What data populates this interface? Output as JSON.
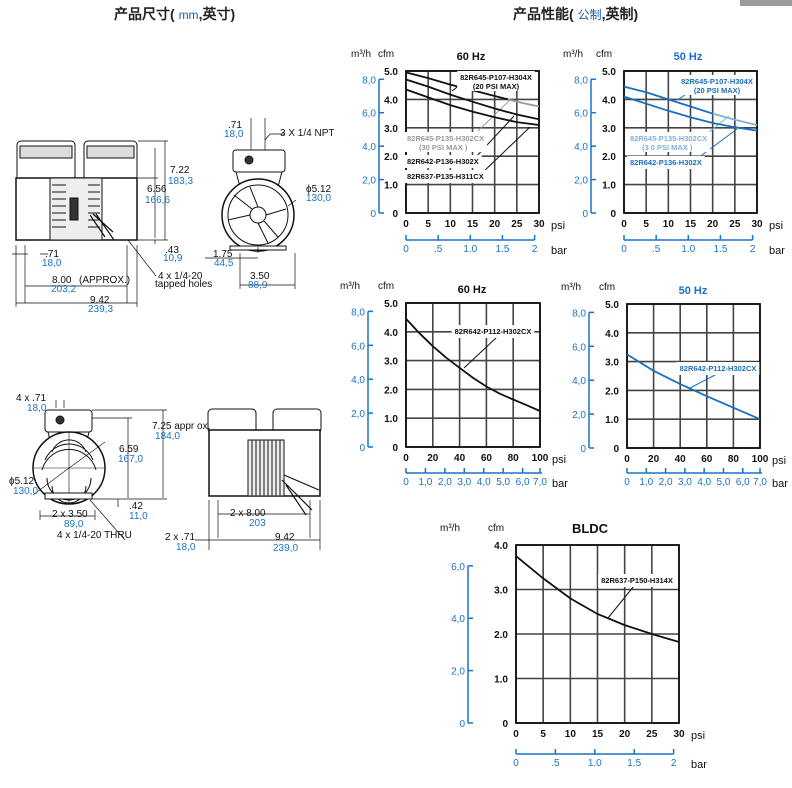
{
  "header": {
    "left_title": "产品尺寸(",
    "left_unit_metric": "mm",
    "left_unit_rest": ",英寸)",
    "right_title": "产品性能(",
    "right_unit_metric": "公制",
    "right_unit_rest": ",英制)"
  },
  "drawings": {
    "front_view": {
      "height_total_in": "7.22",
      "height_total_mm": "183,3",
      "height_body_in": "6.56",
      "height_body_mm": "166,6",
      "foot_offset_in": ".71",
      "foot_offset_mm": "18,0",
      "foot_height_in": ".43",
      "foot_height_mm": "10,9",
      "hole_spacing_in": "8.00",
      "hole_spacing_note": "(APPROX.)",
      "hole_spacing_mm": "203,2",
      "holes_note_1": "4 x 1/4-20",
      "holes_note_2": "tapped holes",
      "length_in": "9.42",
      "length_mm": "239,3"
    },
    "side_view": {
      "port_offset_in": ".71",
      "port_offset_mm": "18,0",
      "ports_note": "3 X 1/4 NPT",
      "diameter_in": "ϕ5.12",
      "diameter_mm": "130,0",
      "half_width_in": "1.75",
      "half_width_mm": "44,5",
      "width_in": "3.50",
      "width_mm": "88,9"
    },
    "bldc_side_view": {
      "port_offset_in": "4 x .71",
      "port_offset_mm": "18,0",
      "height_total_in": "7.25 appr ox.",
      "height_total_mm": "184,0",
      "height_body_in": "6.59",
      "height_body_mm": "167,0",
      "diameter_in": "ϕ5.12",
      "diameter_mm": "130,0",
      "foot_height_in": ".42",
      "foot_height_mm": "11,0",
      "width_in": "2 x 3.50",
      "width_mm": "89,0",
      "holes_note": "4 x 1/4-20 THRU"
    },
    "bldc_front_view": {
      "hole_spacing_in": "2 x 8.00",
      "hole_spacing_mm": "203",
      "foot_offset_in": "2 x .71",
      "foot_offset_mm": "18,0",
      "length_in": "9.42",
      "length_mm": "239,0"
    }
  },
  "colors": {
    "black_curve": "#111111",
    "gray_curve": "#9a9a9a",
    "blue_curve": "#1a6fc0",
    "light_blue_curve": "#7fb0dc",
    "metric_text": "#1a73c8"
  },
  "chart_data": [
    {
      "type": "line",
      "title": "60 Hz",
      "title_color": "#111111",
      "ylabel": "cfm",
      "y2label": "m³/h",
      "xlabel": "psi",
      "x2label": "bar",
      "xlim": [
        0,
        30
      ],
      "ylim": [
        0,
        5
      ],
      "grid": true,
      "xticks": [
        "0",
        "5",
        "10",
        "15",
        "20",
        "25",
        "30"
      ],
      "yticks": [
        "0",
        "1.0",
        "2.0",
        "3.0",
        "4.0",
        "5.0"
      ],
      "y2ticks": [
        "0",
        "2,0",
        "4,0",
        "6,0",
        "8,0"
      ],
      "x2ticks": [
        "0",
        ".5",
        "1.0",
        "1.5",
        "2"
      ],
      "series": [
        {
          "name": "82R645-P107-H304X",
          "note": "(20 PSI MAX)",
          "color": "#111111",
          "points": [
            [
              0,
              4.95
            ],
            [
              5,
              4.75
            ],
            [
              10,
              4.52
            ],
            [
              15,
              4.32
            ],
            [
              20,
              4.12
            ],
            [
              23,
              4.0
            ]
          ]
        },
        {
          "name": "82R645-P135-H302CX",
          "note": "(30  PSI MAX )",
          "color": "#9a9a9a",
          "points": [
            [
              23,
              4.0
            ],
            [
              26,
              3.88
            ],
            [
              30,
              3.75
            ]
          ]
        },
        {
          "name": "82R642-P136-H302X",
          "note": "",
          "color": "#111111",
          "points": [
            [
              0,
              4.7
            ],
            [
              5,
              4.45
            ],
            [
              10,
              4.17
            ],
            [
              15,
              3.92
            ],
            [
              20,
              3.68
            ],
            [
              25,
              3.47
            ],
            [
              30,
              3.3
            ]
          ]
        },
        {
          "name": "82R637-P135-H311CX",
          "note": "",
          "color": "#111111",
          "points": [
            [
              0,
              4.35
            ],
            [
              5,
              4.07
            ],
            [
              10,
              3.8
            ],
            [
              15,
              3.57
            ],
            [
              20,
              3.37
            ],
            [
              25,
              3.2
            ],
            [
              30,
              3.1
            ]
          ]
        }
      ]
    },
    {
      "type": "line",
      "title": "50 Hz",
      "title_color": "#1a6fc0",
      "ylabel": "cfm",
      "y2label": "m³/h",
      "xlabel": "psi",
      "x2label": "bar",
      "xlim": [
        0,
        30
      ],
      "ylim": [
        0,
        5
      ],
      "grid": true,
      "xticks": [
        "0",
        "5",
        "10",
        "15",
        "20",
        "25",
        "30"
      ],
      "yticks": [
        "0",
        "1.0",
        "2.0",
        "3.0",
        "4.0",
        "5.0"
      ],
      "y2ticks": [
        "0",
        "2,0",
        "4,0",
        "6,0",
        "8,0"
      ],
      "x2ticks": [
        "0",
        ".5",
        "1.0",
        "1.5",
        "2"
      ],
      "series": [
        {
          "name": "82R645-P107-H304X",
          "note": "(20 PSI MAX)",
          "color": "#1a6fc0",
          "points": [
            [
              0,
              4.45
            ],
            [
              5,
              4.25
            ],
            [
              10,
              4.0
            ],
            [
              15,
              3.75
            ],
            [
              20,
              3.5
            ]
          ]
        },
        {
          "name": "82R645-P135-H302CX",
          "note": "(3  0 PSI MAX )",
          "color": "#7fb0dc",
          "points": [
            [
              20,
              3.5
            ],
            [
              25,
              3.28
            ],
            [
              30,
              3.1
            ]
          ]
        },
        {
          "name": "82R642-P136-H302X",
          "note": "",
          "color": "#1a6fc0",
          "points": [
            [
              0,
              4.1
            ],
            [
              5,
              3.85
            ],
            [
              10,
              3.6
            ],
            [
              15,
              3.37
            ],
            [
              20,
              3.17
            ],
            [
              25,
              3.02
            ],
            [
              30,
              2.9
            ]
          ]
        }
      ]
    },
    {
      "type": "line",
      "title": "60 Hz",
      "title_color": "#111111",
      "ylabel": "cfm",
      "y2label": "m³/h",
      "xlabel": "psi",
      "x2label": "bar",
      "xlim": [
        0,
        100
      ],
      "ylim": [
        0,
        5
      ],
      "grid": true,
      "xticks": [
        "0",
        "20",
        "40",
        "60",
        "80",
        "100"
      ],
      "yticks": [
        "0",
        "1.0",
        "2.0",
        "3.0",
        "4.0",
        "5.0"
      ],
      "y2ticks": [
        "0",
        "2,0",
        "4,0",
        "6,0",
        "8,0"
      ],
      "x2ticks": [
        "0",
        "1,0",
        "2,0",
        "3,0",
        "4,0",
        "5,0",
        "6,0",
        "7,0"
      ],
      "series": [
        {
          "name": "82R642-P112-H302CX",
          "note": "",
          "color": "#111111",
          "points": [
            [
              0,
              4.45
            ],
            [
              10,
              3.95
            ],
            [
              20,
              3.5
            ],
            [
              30,
              3.1
            ],
            [
              40,
              2.75
            ],
            [
              50,
              2.4
            ],
            [
              60,
              2.1
            ],
            [
              70,
              1.85
            ],
            [
              80,
              1.65
            ],
            [
              90,
              1.45
            ],
            [
              100,
              1.25
            ]
          ]
        }
      ]
    },
    {
      "type": "line",
      "title": "50 Hz",
      "title_color": "#1a6fc0",
      "ylabel": "cfm",
      "y2label": "m³/h",
      "xlabel": "psi",
      "x2label": "bar",
      "xlim": [
        0,
        100
      ],
      "ylim": [
        0,
        5
      ],
      "grid": true,
      "xticks": [
        "0",
        "20",
        "40",
        "60",
        "80",
        "100"
      ],
      "yticks": [
        "0",
        "1.0",
        "2.0",
        "3.0",
        "4.0",
        "5.0"
      ],
      "y2ticks": [
        "0",
        "2,0",
        "4,0",
        "6,0",
        "8,0"
      ],
      "x2ticks": [
        "0",
        "1,0",
        "2,0",
        "3,0",
        "4,0",
        "5,0",
        "6,0",
        "7,0"
      ],
      "series": [
        {
          "name": "82R642-P112-H302CX",
          "note": "",
          "color": "#1a6fc0",
          "points": [
            [
              0,
              3.25
            ],
            [
              20,
              2.68
            ],
            [
              40,
              2.22
            ],
            [
              60,
              1.8
            ],
            [
              80,
              1.4
            ],
            [
              100,
              1.0
            ]
          ]
        }
      ]
    },
    {
      "type": "line",
      "title": "BLDC",
      "title_color": "#111111",
      "ylabel": "cfm",
      "y2label": "m³/h",
      "xlabel": "psi",
      "x2label": "bar",
      "xlim": [
        0,
        30
      ],
      "ylim": [
        0,
        4
      ],
      "grid": true,
      "xticks": [
        "0",
        "5",
        "10",
        "15",
        "20",
        "25",
        "30"
      ],
      "yticks": [
        "0",
        "1.0",
        "2.0",
        "3.0",
        "4.0"
      ],
      "y2ticks": [
        "0",
        "2,0",
        "4,0",
        "6,0"
      ],
      "x2ticks": [
        "0",
        ".5",
        "1.0",
        "1.5",
        "2"
      ],
      "series": [
        {
          "name": "82R637-P150-H314X",
          "note": "",
          "color": "#111111",
          "points": [
            [
              0,
              3.75
            ],
            [
              5,
              3.25
            ],
            [
              10,
              2.8
            ],
            [
              15,
              2.45
            ],
            [
              20,
              2.2
            ],
            [
              25,
              2.0
            ],
            [
              30,
              1.82
            ]
          ]
        }
      ]
    }
  ]
}
